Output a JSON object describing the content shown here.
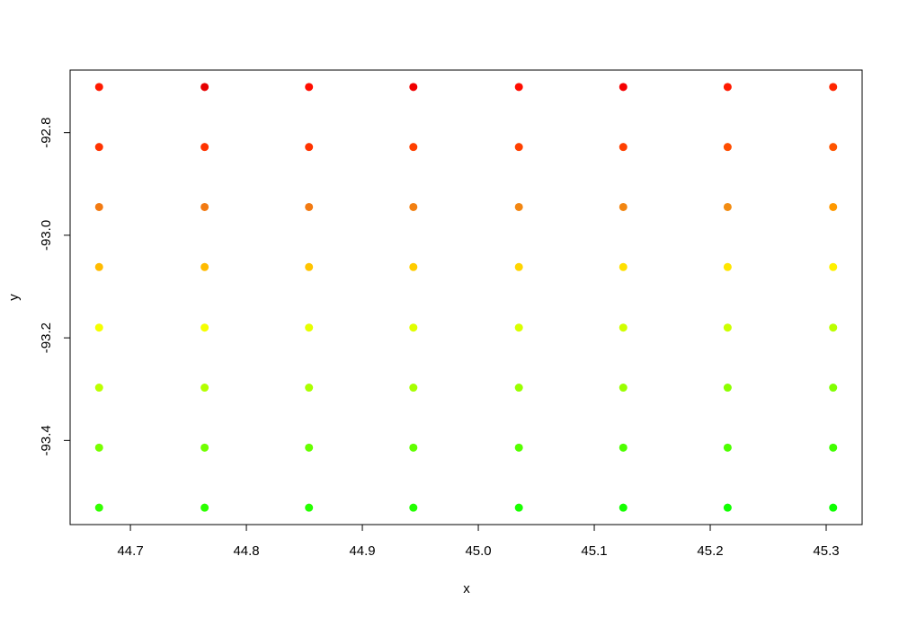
{
  "chart_data": {
    "type": "scatter",
    "x_label": "x",
    "y_label": "y",
    "x": [
      44.673,
      44.764,
      44.854,
      44.944,
      45.035,
      45.125,
      45.215,
      45.306,
      44.673,
      44.764,
      44.854,
      44.944,
      45.035,
      45.125,
      45.215,
      45.306,
      44.673,
      44.764,
      44.854,
      44.944,
      45.035,
      45.125,
      45.215,
      45.306,
      44.673,
      44.764,
      44.854,
      44.944,
      45.035,
      45.125,
      45.215,
      45.306,
      44.673,
      44.764,
      44.854,
      44.944,
      45.035,
      45.125,
      45.215,
      45.306,
      44.673,
      44.764,
      44.854,
      44.944,
      45.035,
      45.125,
      45.215,
      45.306,
      44.673,
      44.764,
      44.854,
      44.944,
      45.035,
      45.125,
      45.215,
      45.306,
      44.673,
      44.764,
      44.854,
      44.944,
      45.035,
      45.125,
      45.215,
      45.306
    ],
    "y": [
      -92.711,
      -92.711,
      -92.711,
      -92.711,
      -92.711,
      -92.711,
      -92.711,
      -92.711,
      -92.828,
      -92.828,
      -92.828,
      -92.828,
      -92.828,
      -92.828,
      -92.828,
      -92.828,
      -92.945,
      -92.945,
      -92.945,
      -92.945,
      -92.945,
      -92.945,
      -92.945,
      -92.945,
      -93.062,
      -93.062,
      -93.062,
      -93.062,
      -93.062,
      -93.062,
      -93.062,
      -93.062,
      -93.18,
      -93.18,
      -93.18,
      -93.18,
      -93.18,
      -93.18,
      -93.18,
      -93.18,
      -93.297,
      -93.297,
      -93.297,
      -93.297,
      -93.297,
      -93.297,
      -93.297,
      -93.297,
      -93.414,
      -93.414,
      -93.414,
      -93.414,
      -93.414,
      -93.414,
      -93.414,
      -93.414,
      -93.531,
      -93.531,
      -93.531,
      -93.531,
      -93.531,
      -93.531,
      -93.531,
      -93.531
    ],
    "colors": [
      "#FF1A00",
      "#E60000",
      "#FF0D00",
      "#F00000",
      "#FF0D00",
      "#F50000",
      "#FF1A00",
      "#FF2600",
      "#FF3300",
      "#FF3300",
      "#FF3300",
      "#FF4000",
      "#FF4000",
      "#FF4000",
      "#FF4D00",
      "#FF5500",
      "#F27A12",
      "#F27A12",
      "#F27A12",
      "#F28012",
      "#F28612",
      "#F28612",
      "#F28C12",
      "#FF9900",
      "#FFBB00",
      "#FFBB00",
      "#FFC400",
      "#FFCC00",
      "#FFD500",
      "#FFE000",
      "#FFE600",
      "#FFF000",
      "#F5FF00",
      "#F5FF00",
      "#E6FF00",
      "#E0FF00",
      "#D9FF00",
      "#D0FF00",
      "#CCFF00",
      "#BBFF00",
      "#BBFF00",
      "#B3FF00",
      "#AAFF00",
      "#A6FF00",
      "#99FF00",
      "#99FF00",
      "#8CFF00",
      "#80FF00",
      "#77FF00",
      "#70FF00",
      "#66FF00",
      "#60FF00",
      "#55FF00",
      "#4DFF00",
      "#4DFF00",
      "#40FF00",
      "#33FF00",
      "#2BFF00",
      "#26FF00",
      "#22FF00",
      "#1AFF00",
      "#14FF00",
      "#11FF00",
      "#0DFF00"
    ],
    "xlim": [
      44.648,
      45.331
    ],
    "ylim": [
      -93.564,
      -92.678
    ],
    "xticks": [
      44.7,
      44.8,
      44.9,
      {
        "value": 45,
        "label": "45.0"
      },
      45.1,
      45.2,
      45.3
    ],
    "yticks": [
      -92.8,
      {
        "value": -93,
        "label": "-93.0"
      },
      -93.2,
      -93.4
    ]
  }
}
